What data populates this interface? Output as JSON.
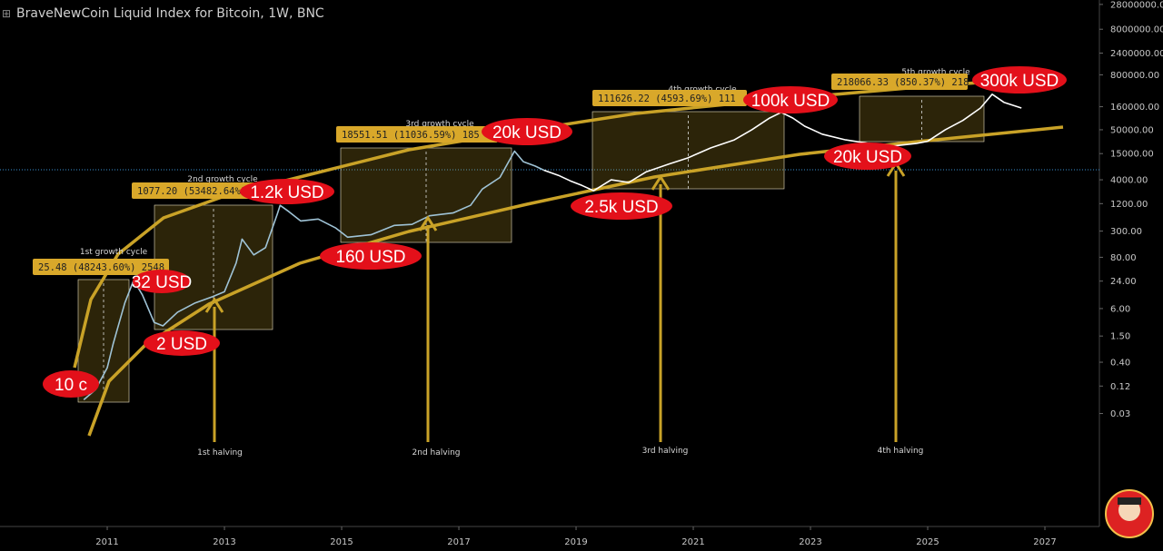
{
  "chart_data": {
    "type": "line",
    "title": "BraveNewCoin Liquid Index for Bitcoin, 1W, BNC",
    "log_scale": true,
    "grid": false,
    "xlim": [
      2009.17,
      2027.93
    ],
    "xticks": [
      2011,
      2013,
      2015,
      2017,
      2019,
      2021,
      2023,
      2025,
      2027
    ],
    "ylim": [
      0.0001,
      35000000
    ],
    "yticks": [
      {
        "value": 28000000,
        "label": "28000000.00"
      },
      {
        "value": 8000000,
        "label": "8000000.00"
      },
      {
        "value": 2400000,
        "label": "2400000.00"
      },
      {
        "value": 800000,
        "label": "800000.00"
      },
      {
        "value": 160000,
        "label": "160000.00"
      },
      {
        "value": 50000,
        "label": "50000.00"
      },
      {
        "value": 15000,
        "label": "15000.00"
      },
      {
        "value": 4000,
        "label": "4000.00"
      },
      {
        "value": 1200,
        "label": "1200.00"
      },
      {
        "value": 300,
        "label": "300.00"
      },
      {
        "value": 80,
        "label": "80.00"
      },
      {
        "value": 24,
        "label": "24.00"
      },
      {
        "value": 6,
        "label": "6.00"
      },
      {
        "value": 1.5,
        "label": "1.50"
      },
      {
        "value": 0.4,
        "label": "0.40"
      },
      {
        "value": 0.12,
        "label": "0.12"
      },
      {
        "value": 0.03,
        "label": "0.03"
      }
    ],
    "series": [
      {
        "color": "#9fc3d6",
        "x": [
          2010.6,
          2010.8,
          2011.0,
          2011.1,
          2011.3,
          2011.45,
          2011.6,
          2011.8,
          2011.95,
          2012.2,
          2012.5,
          2012.8,
          2013.0,
          2013.2,
          2013.3,
          2013.5,
          2013.7,
          2013.9,
          2013.95,
          2014.1,
          2014.3,
          2014.6,
          2014.9,
          2015.1,
          2015.5,
          2015.9,
          2016.2,
          2016.5,
          2016.9,
          2017.2,
          2017.4,
          2017.7,
          2017.95,
          2018.1,
          2018.3,
          2018.45
        ],
        "values": [
          0.06,
          0.1,
          0.3,
          1,
          8,
          25,
          12,
          3,
          2.5,
          5,
          8,
          11,
          14,
          60,
          200,
          90,
          130,
          700,
          1100,
          800,
          500,
          550,
          350,
          220,
          250,
          400,
          420,
          650,
          750,
          1100,
          2500,
          4500,
          17000,
          10000,
          8000,
          6500
        ]
      },
      {
        "color": "#ffffff",
        "x": [
          2018.45,
          2018.7,
          2018.9,
          2019.1,
          2019.3,
          2019.6,
          2019.9,
          2020.2,
          2020.6,
          2020.9,
          2021.3,
          2021.7,
          2022.0,
          2022.3,
          2022.5,
          2022.7,
          2022.9,
          2023.2,
          2023.6,
          2024.0,
          2024.4,
          2024.8,
          2025.0,
          2025.3,
          2025.6,
          2025.9,
          2026.1,
          2026.3,
          2026.6
        ],
        "values": [
          6500,
          5000,
          3800,
          3000,
          2300,
          4000,
          3500,
          6000,
          9000,
          12000,
          20000,
          30000,
          50000,
          90000,
          120000,
          90000,
          60000,
          40000,
          30000,
          25000,
          22000,
          25000,
          28000,
          50000,
          80000,
          150000,
          300000,
          200000,
          150000
        ]
      }
    ],
    "annotations": [
      "10 c",
      "32 USD",
      "2 USD",
      "1.2k USD",
      "160 USD",
      "20k USD",
      "2.5k USD",
      "100k USD",
      "20k USD",
      "300k USD"
    ],
    "growth_cycles": [
      "1st growth cycle",
      "2nd growth cycle",
      "3rd growth cycle",
      "4th growth cycle",
      "5th growth cycle"
    ],
    "measures": [
      "25.48 (48243.60%) 2548",
      "1077.20 (53482.64%)",
      "18551.51 (11036.59%) 185",
      "111626.22 (4593.69%) 111",
      "218066.33 (850.37%) 218"
    ],
    "halvings": [
      "1st halving",
      "2nd halving",
      "3rd halving",
      "4th halving"
    ]
  }
}
